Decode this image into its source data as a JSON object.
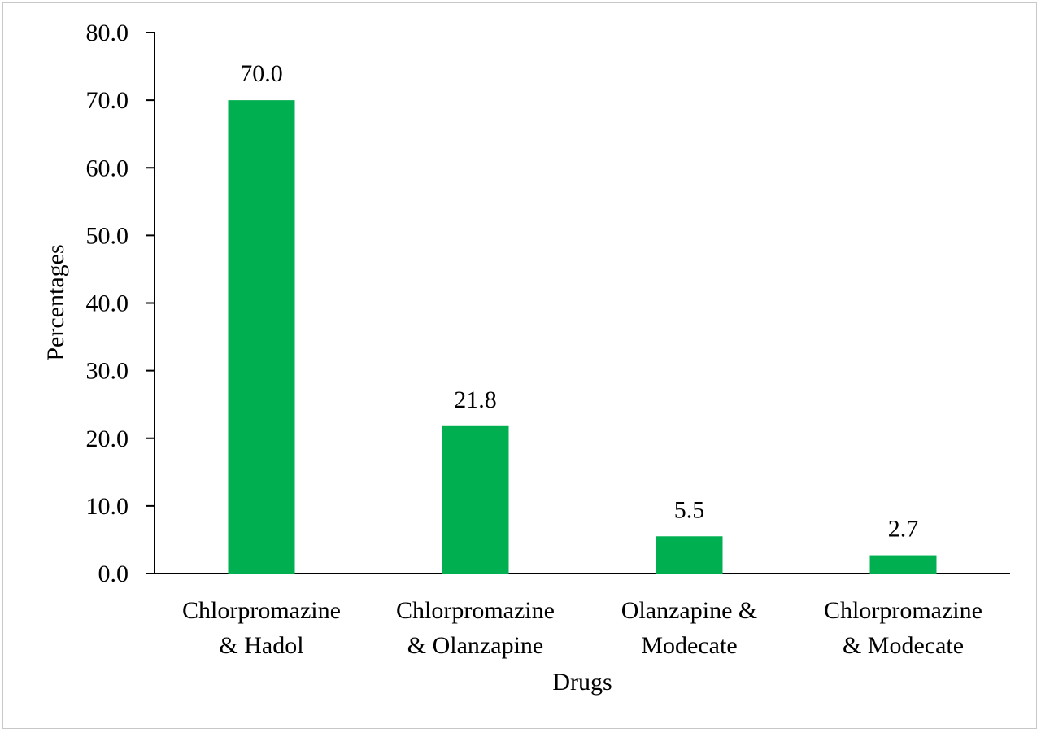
{
  "chart_data": {
    "type": "bar",
    "categories": [
      [
        "Chlorpromazine",
        "& Hadol"
      ],
      [
        "Chlorpromazine",
        "& Olanzapine"
      ],
      [
        "Olanzapine &",
        "Modecate"
      ],
      [
        "Chlorpromazine",
        "& Modecate"
      ]
    ],
    "values": [
      70.0,
      21.8,
      5.5,
      2.7
    ],
    "data_labels": [
      "70.0",
      "21.8",
      "5.5",
      "2.7"
    ],
    "xlabel": "Drugs",
    "ylabel": "Percentages",
    "ylim": [
      0,
      80
    ],
    "yticks": [
      {
        "value": 0,
        "label": "0.0"
      },
      {
        "value": 10,
        "label": "10.0"
      },
      {
        "value": 20,
        "label": "20.0"
      },
      {
        "value": 30,
        "label": "30.0"
      },
      {
        "value": 40,
        "label": "40.0"
      },
      {
        "value": 50,
        "label": "50.0"
      },
      {
        "value": 60,
        "label": "60.0"
      },
      {
        "value": 70,
        "label": "70.0"
      },
      {
        "value": 80,
        "label": "80.0"
      }
    ],
    "grid": false,
    "bar_color": "#00b050"
  }
}
